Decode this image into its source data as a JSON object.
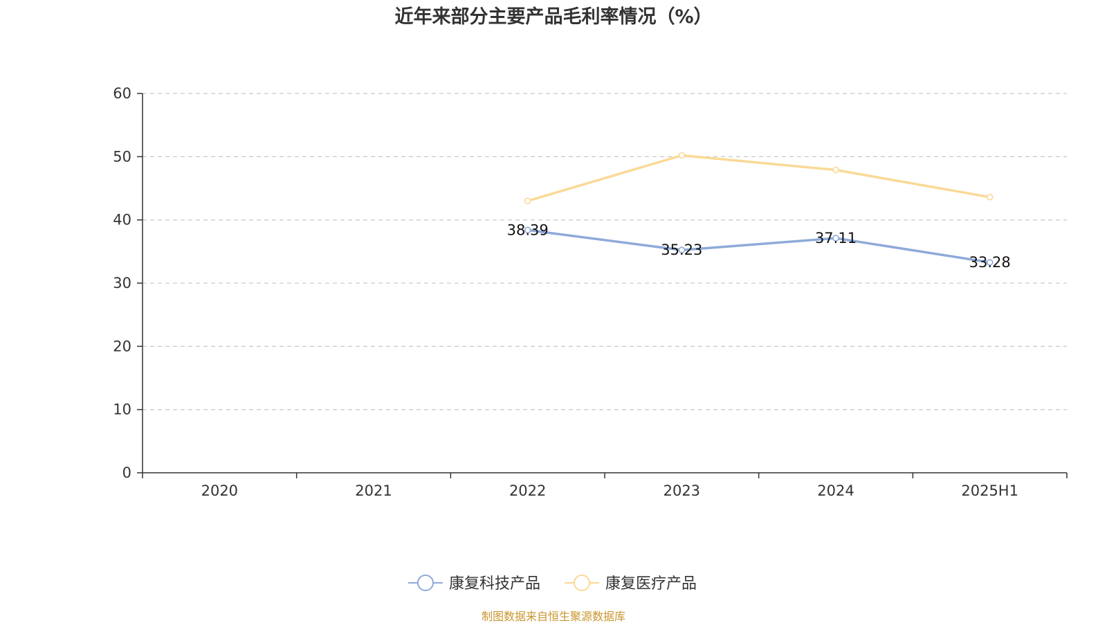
{
  "chart_data": {
    "type": "line",
    "title": "近年来部分主要产品毛利率情况（%）",
    "categories": [
      "2020",
      "2021",
      "2022",
      "2023",
      "2024",
      "2025H1"
    ],
    "ylim": [
      0,
      60
    ],
    "yticks": [
      0,
      10,
      20,
      30,
      40,
      50,
      60
    ],
    "grid": true,
    "legend_position": "bottom",
    "series": [
      {
        "name": "康复科技产品",
        "color": "#8eaad9",
        "values": [
          null,
          null,
          38.39,
          35.23,
          37.11,
          33.28
        ],
        "labels": [
          null,
          null,
          "38.39",
          "35.23",
          "37.11",
          "33.28"
        ]
      },
      {
        "name": "康复医疗产品",
        "color": "#fad996",
        "values": [
          null,
          null,
          43.0,
          50.2,
          47.9,
          43.6
        ],
        "labels": [
          null,
          null,
          null,
          null,
          null,
          null
        ]
      }
    ],
    "source": "制图数据来自恒生聚源数据库"
  }
}
